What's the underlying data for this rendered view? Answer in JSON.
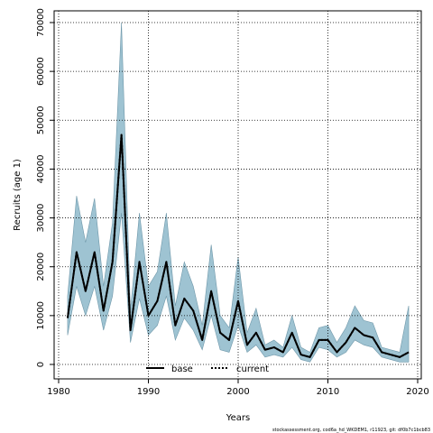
{
  "chart_data": {
    "type": "line",
    "title": "",
    "xlabel": "Years",
    "ylabel": "Recruits (age 1)",
    "xlim": [
      1980,
      2020
    ],
    "ylim": [
      0,
      70000
    ],
    "xticks": [
      1980,
      1990,
      2000,
      2010,
      2020
    ],
    "yticks": [
      0,
      10000,
      20000,
      30000,
      40000,
      50000,
      60000,
      70000
    ],
    "grid": true,
    "legend_position": "bottom-center",
    "x": [
      1981,
      1982,
      1983,
      1984,
      1985,
      1986,
      1987,
      1988,
      1989,
      1990,
      1991,
      1992,
      1993,
      1994,
      1995,
      1996,
      1997,
      1998,
      1999,
      2000,
      2001,
      2002,
      2003,
      2004,
      2005,
      2006,
      2007,
      2008,
      2009,
      2010,
      2011,
      2012,
      2013,
      2014,
      2015,
      2016,
      2017,
      2018,
      2019
    ],
    "series": [
      {
        "name": "base",
        "line_style": "solid",
        "color": "#000000",
        "values": [
          9500,
          23000,
          15000,
          23000,
          11000,
          21000,
          47000,
          7000,
          21000,
          10000,
          13000,
          21000,
          8000,
          13500,
          11000,
          5000,
          15000,
          6500,
          5000,
          13000,
          4000,
          6500,
          3000,
          3500,
          2500,
          6500,
          2000,
          1500,
          5000,
          5000,
          2500,
          4500,
          7500,
          6000,
          5500,
          2500,
          2000,
          1500,
          2500
        ]
      },
      {
        "name": "current",
        "line_style": "dotted",
        "color": "#000000",
        "values": [
          9500,
          23000,
          15000,
          23000,
          11000,
          21000,
          47000,
          7000,
          21000,
          10000,
          13000,
          21000,
          8000,
          13500,
          11000,
          5000,
          15000,
          6500,
          5000,
          13000,
          4000,
          6500,
          3000,
          3500,
          2500,
          6500,
          2000,
          1500,
          5000,
          5000,
          2500,
          4500,
          7500,
          6000,
          5500,
          2500,
          2000,
          1500,
          2500
        ]
      }
    ],
    "band": {
      "color": "#9ec3d2",
      "edge_color": "#6e97a9",
      "upper": [
        14000,
        34500,
        25000,
        34000,
        16000,
        29000,
        70000,
        11000,
        31000,
        16000,
        19000,
        31000,
        12000,
        21000,
        16000,
        8000,
        24500,
        10000,
        7500,
        22000,
        6500,
        11500,
        4000,
        5000,
        3500,
        10000,
        3500,
        2500,
        7500,
        8000,
        4500,
        7500,
        12000,
        9000,
        8500,
        3500,
        3000,
        2500,
        12000
      ],
      "lower": [
        6000,
        16000,
        10000,
        16000,
        7000,
        14000,
        31000,
        4500,
        13500,
        6000,
        8000,
        14000,
        5000,
        9500,
        7000,
        3000,
        10000,
        3000,
        2500,
        8000,
        2500,
        4000,
        1500,
        2000,
        1500,
        3500,
        1000,
        500,
        3500,
        3000,
        1500,
        2500,
        5000,
        4000,
        3500,
        1500,
        1000,
        500,
        500
      ]
    }
  },
  "legend": {
    "items": [
      {
        "label": "base"
      },
      {
        "label": "current"
      }
    ]
  },
  "footer": {
    "text": "stockassessment.org, cod6a_hd_WKDEM1, r11923, git: df0b7c1bcb83"
  }
}
